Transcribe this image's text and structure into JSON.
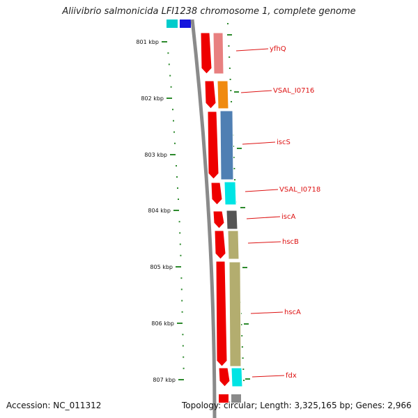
{
  "title": "Aliivibrio salmonicida LFI1238 chromosome 1, complete genome",
  "accession": "Accession: NC_011312",
  "summary": "Topology: circular; Length: 3,325,165 bp; Genes: 2,966",
  "colors": {
    "backbone": "#8a8a8a",
    "tick": "#2d8a2d",
    "label": "#dd1111",
    "cds": "#ee0000"
  },
  "scale_ticks": [
    {
      "label": "801 kbp"
    },
    {
      "label": "802 kbp"
    },
    {
      "label": "803 kbp"
    },
    {
      "label": "804 kbp"
    },
    {
      "label": "805 kbp"
    },
    {
      "label": "806 kbp"
    },
    {
      "label": "807 kbp"
    }
  ],
  "genes": [
    {
      "name": "yfhQ",
      "color": "#e88080"
    },
    {
      "name": "VSAL_I0716",
      "color": "#f08a10"
    },
    {
      "name": "iscS",
      "color": "#4f7fb3"
    },
    {
      "name": "VSAL_I0718",
      "color": "#00e4e4"
    },
    {
      "name": "iscA",
      "color": "#555555"
    },
    {
      "name": "hscB",
      "color": "#b3ad6f"
    },
    {
      "name": "hscA",
      "color": "#b3ad6f"
    },
    {
      "name": "fdx",
      "color": "#00e4e4"
    }
  ]
}
